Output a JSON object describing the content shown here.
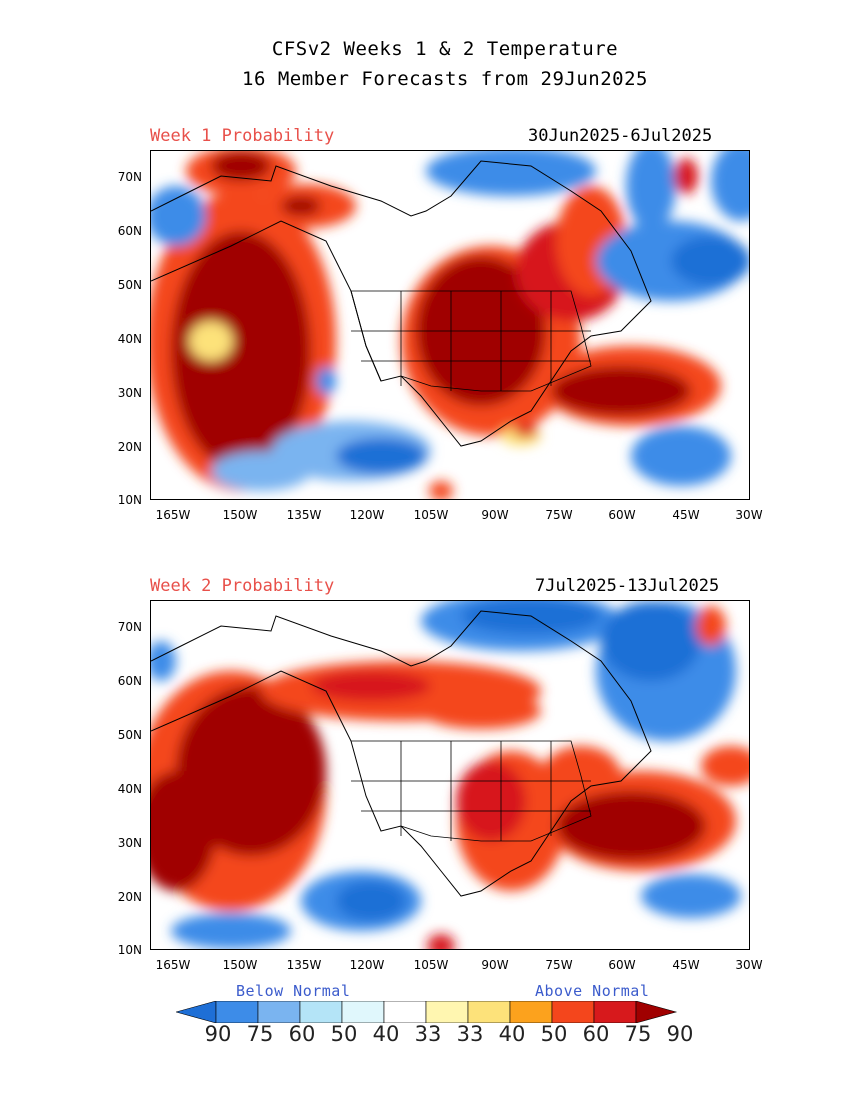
{
  "title_line1": "CFSv2 Weeks 1 & 2 Temperature",
  "title_line2": "16 Member Forecasts from 29Jun2025",
  "panels": [
    {
      "label": "Week 1 Probability",
      "dates": "30Jun2025-6Jul2025"
    },
    {
      "label": "Week 2 Probability",
      "dates": "7Jul2025-13Jul2025"
    }
  ],
  "axes": {
    "lat_labels": [
      "70N",
      "60N",
      "50N",
      "40N",
      "30N",
      "20N",
      "10N"
    ],
    "lon_labels": [
      "165W",
      "150W",
      "135W",
      "120W",
      "105W",
      "90W",
      "75W",
      "60W",
      "45W",
      "30W"
    ]
  },
  "legend": {
    "below_label": "Below Normal",
    "above_label": "Above Normal",
    "values": [
      "90",
      "75",
      "60",
      "50",
      "40",
      "33",
      "33",
      "40",
      "50",
      "60",
      "75",
      "90"
    ],
    "colors": [
      "#1e6fd6",
      "#3d8ce8",
      "#7ab4f0",
      "#b4e4f7",
      "#e0f7fc",
      "#ffffff",
      "#fff6b0",
      "#fde27a",
      "#fca21d",
      "#f4461c",
      "#d7191c",
      "#a00000"
    ]
  },
  "colors": {
    "label_red": "#e8504a",
    "legend_blue": "#3c5ccc"
  }
}
